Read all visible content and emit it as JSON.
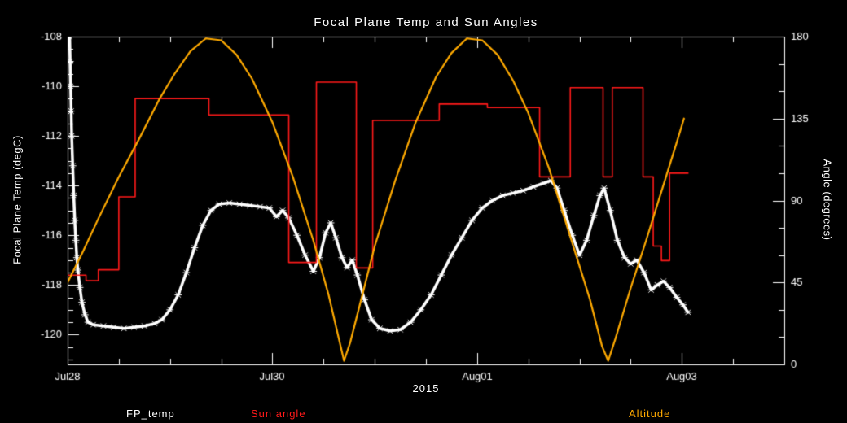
{
  "chart_data": {
    "type": "line",
    "title": "Focal Plane Temp and Sun Angles",
    "background": "#000000",
    "axis_color": "#ffffff",
    "x_axis": {
      "label": "2015",
      "range": [
        0,
        7
      ],
      "major_ticks": [
        {
          "t": 0,
          "label": "Jul28"
        },
        {
          "t": 2,
          "label": "Jul30"
        },
        {
          "t": 4,
          "label": "Aug01"
        },
        {
          "t": 6,
          "label": "Aug03"
        }
      ],
      "minor_step": 0.5
    },
    "y_left": {
      "label": "Focal Plane Temp (degC)",
      "range": [
        -121.2,
        -108
      ],
      "major_ticks": [
        -108,
        -110,
        -112,
        -114,
        -116,
        -118,
        -120
      ],
      "minor_step": 0.5
    },
    "y_right": {
      "label": "Angle (degrees)",
      "range": [
        0,
        180
      ],
      "major_ticks": [
        0,
        45,
        90,
        135,
        180
      ],
      "minor_step": 15
    },
    "legend": {
      "entries": [
        {
          "label": "FP_temp",
          "color": "#ffffff"
        },
        {
          "label": "Sun angle",
          "color": "#ff1a1a"
        },
        {
          "label": "Altitude",
          "color": "#ffaa00"
        }
      ]
    },
    "series": [
      {
        "name": "FP_temp",
        "axis": "left",
        "color": "#ffffff",
        "mode": "line",
        "width": 3.5,
        "marker": true,
        "points": [
          [
            0.02,
            -108.0
          ],
          [
            0.025,
            -109.0
          ],
          [
            0.03,
            -110.0
          ],
          [
            0.035,
            -111.0
          ],
          [
            0.04,
            -112.0
          ],
          [
            0.05,
            -113.2
          ],
          [
            0.06,
            -114.4
          ],
          [
            0.07,
            -115.4
          ],
          [
            0.08,
            -116.2
          ],
          [
            0.09,
            -116.9
          ],
          [
            0.1,
            -117.4
          ],
          [
            0.12,
            -118.1
          ],
          [
            0.14,
            -118.7
          ],
          [
            0.17,
            -119.2
          ],
          [
            0.2,
            -119.5
          ],
          [
            0.25,
            -119.6
          ],
          [
            0.35,
            -119.65
          ],
          [
            0.45,
            -119.7
          ],
          [
            0.55,
            -119.75
          ],
          [
            0.65,
            -119.7
          ],
          [
            0.75,
            -119.65
          ],
          [
            0.85,
            -119.55
          ],
          [
            0.92,
            -119.4
          ],
          [
            1.0,
            -119.0
          ],
          [
            1.08,
            -118.4
          ],
          [
            1.16,
            -117.5
          ],
          [
            1.24,
            -116.5
          ],
          [
            1.32,
            -115.6
          ],
          [
            1.4,
            -115.0
          ],
          [
            1.48,
            -114.75
          ],
          [
            1.58,
            -114.7
          ],
          [
            1.68,
            -114.75
          ],
          [
            1.78,
            -114.8
          ],
          [
            1.88,
            -114.85
          ],
          [
            1.97,
            -114.9
          ],
          [
            2.04,
            -115.25
          ],
          [
            2.1,
            -115.0
          ],
          [
            2.16,
            -115.3
          ],
          [
            2.24,
            -116.0
          ],
          [
            2.32,
            -116.8
          ],
          [
            2.4,
            -117.45
          ],
          [
            2.46,
            -116.9
          ],
          [
            2.52,
            -115.9
          ],
          [
            2.57,
            -115.5
          ],
          [
            2.62,
            -116.1
          ],
          [
            2.68,
            -116.9
          ],
          [
            2.73,
            -117.3
          ],
          [
            2.78,
            -117.0
          ],
          [
            2.83,
            -117.6
          ],
          [
            2.9,
            -118.6
          ],
          [
            2.97,
            -119.4
          ],
          [
            3.05,
            -119.75
          ],
          [
            3.15,
            -119.85
          ],
          [
            3.25,
            -119.8
          ],
          [
            3.35,
            -119.5
          ],
          [
            3.45,
            -119.0
          ],
          [
            3.55,
            -118.4
          ],
          [
            3.65,
            -117.6
          ],
          [
            3.75,
            -116.8
          ],
          [
            3.85,
            -116.1
          ],
          [
            3.95,
            -115.4
          ],
          [
            4.05,
            -114.9
          ],
          [
            4.15,
            -114.6
          ],
          [
            4.25,
            -114.4
          ],
          [
            4.35,
            -114.3
          ],
          [
            4.45,
            -114.2
          ],
          [
            4.55,
            -114.05
          ],
          [
            4.65,
            -113.9
          ],
          [
            4.72,
            -113.8
          ],
          [
            4.78,
            -114.1
          ],
          [
            4.85,
            -115.0
          ],
          [
            4.93,
            -116.0
          ],
          [
            5.0,
            -116.8
          ],
          [
            5.07,
            -116.2
          ],
          [
            5.14,
            -115.2
          ],
          [
            5.2,
            -114.4
          ],
          [
            5.24,
            -114.1
          ],
          [
            5.3,
            -115.0
          ],
          [
            5.37,
            -116.2
          ],
          [
            5.44,
            -116.9
          ],
          [
            5.5,
            -117.15
          ],
          [
            5.56,
            -117.0
          ],
          [
            5.63,
            -117.5
          ],
          [
            5.7,
            -118.2
          ],
          [
            5.76,
            -118.0
          ],
          [
            5.82,
            -117.85
          ],
          [
            5.88,
            -118.1
          ],
          [
            5.95,
            -118.5
          ],
          [
            6.01,
            -118.8
          ],
          [
            6.06,
            -119.1
          ]
        ]
      },
      {
        "name": "Sun angle",
        "axis": "right",
        "color": "#ff1a1a",
        "mode": "step",
        "width": 1.6,
        "marker": false,
        "points": [
          [
            0.0,
            49
          ],
          [
            0.18,
            46
          ],
          [
            0.3,
            52
          ],
          [
            0.5,
            92
          ],
          [
            0.66,
            146
          ],
          [
            1.38,
            137
          ],
          [
            2.16,
            56
          ],
          [
            2.43,
            155
          ],
          [
            2.82,
            53
          ],
          [
            2.98,
            134
          ],
          [
            3.63,
            143
          ],
          [
            4.1,
            141
          ],
          [
            4.61,
            103
          ],
          [
            4.91,
            152
          ],
          [
            5.23,
            103
          ],
          [
            5.32,
            152
          ],
          [
            5.62,
            103
          ],
          [
            5.72,
            65
          ],
          [
            5.8,
            57
          ],
          [
            5.88,
            105
          ],
          [
            6.06,
            105
          ]
        ]
      },
      {
        "name": "Altitude",
        "axis": "right",
        "color": "#ffaa00",
        "mode": "line",
        "width": 2.2,
        "marker": false,
        "points": [
          [
            0.0,
            45
          ],
          [
            0.15,
            62
          ],
          [
            0.3,
            80
          ],
          [
            0.5,
            103
          ],
          [
            0.7,
            124
          ],
          [
            0.9,
            146
          ],
          [
            1.05,
            160
          ],
          [
            1.2,
            172
          ],
          [
            1.35,
            179
          ],
          [
            1.5,
            178
          ],
          [
            1.65,
            170
          ],
          [
            1.8,
            157
          ],
          [
            2.0,
            133
          ],
          [
            2.2,
            103
          ],
          [
            2.4,
            68
          ],
          [
            2.55,
            38
          ],
          [
            2.65,
            14
          ],
          [
            2.7,
            2
          ],
          [
            2.76,
            12
          ],
          [
            2.86,
            34
          ],
          [
            3.0,
            65
          ],
          [
            3.2,
            101
          ],
          [
            3.4,
            133
          ],
          [
            3.6,
            158
          ],
          [
            3.75,
            171
          ],
          [
            3.9,
            179
          ],
          [
            4.05,
            178
          ],
          [
            4.2,
            170
          ],
          [
            4.35,
            156
          ],
          [
            4.5,
            138
          ],
          [
            4.7,
            108
          ],
          [
            4.9,
            72
          ],
          [
            5.1,
            36
          ],
          [
            5.22,
            10
          ],
          [
            5.28,
            2
          ],
          [
            5.35,
            14
          ],
          [
            5.5,
            42
          ],
          [
            5.65,
            68
          ],
          [
            5.8,
            95
          ],
          [
            5.95,
            122
          ],
          [
            6.02,
            135
          ]
        ]
      }
    ]
  }
}
